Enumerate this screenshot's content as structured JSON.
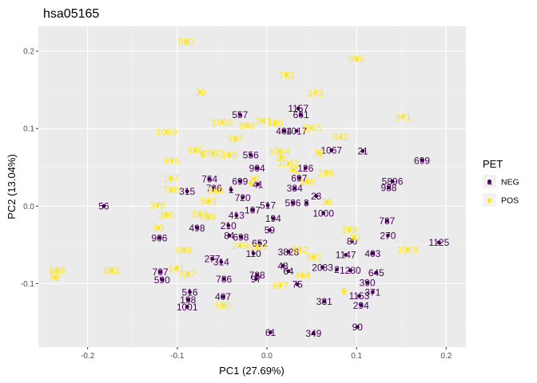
{
  "chart_data": {
    "type": "scatter",
    "title": "hsa05165",
    "xlabel": "PC1 (27.69%)",
    "ylabel": "PC2 (13.04%)",
    "xlim": [
      -0.255,
      0.222
    ],
    "ylim": [
      -0.182,
      0.232
    ],
    "x_ticks": [
      -0.2,
      -0.1,
      0.0,
      0.1,
      0.2
    ],
    "x_tick_labels": [
      "-0.2",
      "-0.1",
      "0.0",
      "0.1",
      "0.2"
    ],
    "y_ticks": [
      -0.1,
      0.0,
      0.1,
      0.2
    ],
    "y_tick_labels": [
      "-0.1",
      "0.0",
      "0.1",
      "0.2"
    ],
    "grid": true,
    "background": "#ebebeb",
    "legend": {
      "title": "PET",
      "position": "right",
      "entries": [
        {
          "label": "NEG",
          "color": "#440154"
        },
        {
          "label": "POS",
          "color": "#fde725"
        }
      ]
    },
    "series": [
      {
        "name": "NEG",
        "color": "#440154",
        "points": [
          {
            "x": -0.182,
            "y": 0.0,
            "label": "56"
          },
          {
            "x": -0.12,
            "y": -0.041,
            "label": "906"
          },
          {
            "x": -0.119,
            "y": -0.085,
            "label": "707"
          },
          {
            "x": -0.117,
            "y": -0.095,
            "label": "590"
          },
          {
            "x": -0.089,
            "y": 0.019,
            "label": "315"
          },
          {
            "x": -0.078,
            "y": -0.028,
            "label": "498"
          },
          {
            "x": -0.086,
            "y": -0.111,
            "label": "516"
          },
          {
            "x": -0.088,
            "y": -0.121,
            "label": "198"
          },
          {
            "x": -0.089,
            "y": -0.13,
            "label": "1001"
          },
          {
            "x": -0.061,
            "y": -0.068,
            "label": "277"
          },
          {
            "x": -0.051,
            "y": -0.072,
            "label": "314"
          },
          {
            "x": -0.048,
            "y": -0.094,
            "label": "786"
          },
          {
            "x": -0.049,
            "y": -0.117,
            "label": "407"
          },
          {
            "x": -0.064,
            "y": 0.035,
            "label": "764"
          },
          {
            "x": -0.059,
            "y": 0.023,
            "label": "796"
          },
          {
            "x": -0.03,
            "y": 0.032,
            "label": "699"
          },
          {
            "x": -0.04,
            "y": 0.021,
            "label": "1"
          },
          {
            "x": -0.027,
            "y": 0.011,
            "label": "720"
          },
          {
            "x": -0.034,
            "y": -0.012,
            "label": "413"
          },
          {
            "x": -0.043,
            "y": -0.025,
            "label": "210"
          },
          {
            "x": -0.042,
            "y": -0.038,
            "label": "84"
          },
          {
            "x": -0.029,
            "y": -0.04,
            "label": "698"
          },
          {
            "x": -0.016,
            "y": -0.005,
            "label": "107"
          },
          {
            "x": -0.008,
            "y": -0.048,
            "label": "652"
          },
          {
            "x": -0.015,
            "y": -0.061,
            "label": "110"
          },
          {
            "x": -0.011,
            "y": -0.089,
            "label": "788"
          },
          {
            "x": -0.012,
            "y": -0.094,
            "label": "97"
          },
          {
            "x": -0.03,
            "y": 0.118,
            "label": "557"
          },
          {
            "x": -0.018,
            "y": 0.066,
            "label": "556"
          },
          {
            "x": -0.011,
            "y": 0.049,
            "label": "904"
          },
          {
            "x": -0.01,
            "y": 0.028,
            "label": "41"
          },
          {
            "x": 0.007,
            "y": -0.016,
            "label": "194"
          },
          {
            "x": 0.003,
            "y": -0.031,
            "label": "59"
          },
          {
            "x": 0.001,
            "y": 0.001,
            "label": "517"
          },
          {
            "x": 0.019,
            "y": 0.097,
            "label": "404"
          },
          {
            "x": 0.033,
            "y": 0.097,
            "label": "1017"
          },
          {
            "x": 0.035,
            "y": 0.126,
            "label": "1157"
          },
          {
            "x": 0.038,
            "y": 0.118,
            "label": "661"
          },
          {
            "x": 0.043,
            "y": 0.049,
            "label": "126"
          },
          {
            "x": 0.036,
            "y": 0.036,
            "label": "697"
          },
          {
            "x": 0.031,
            "y": 0.023,
            "label": "384"
          },
          {
            "x": 0.029,
            "y": 0.004,
            "label": "596"
          },
          {
            "x": 0.055,
            "y": 0.013,
            "label": "23"
          },
          {
            "x": 0.044,
            "y": 0.004,
            "label": "3"
          },
          {
            "x": 0.063,
            "y": -0.009,
            "label": "1000"
          },
          {
            "x": 0.072,
            "y": 0.072,
            "label": "1067"
          },
          {
            "x": 0.107,
            "y": 0.071,
            "label": "21"
          },
          {
            "x": 0.024,
            "y": -0.059,
            "label": "3828"
          },
          {
            "x": 0.018,
            "y": -0.077,
            "label": "48"
          },
          {
            "x": 0.024,
            "y": -0.084,
            "label": "64"
          },
          {
            "x": 0.062,
            "y": -0.079,
            "label": "2083"
          },
          {
            "x": 0.078,
            "y": -0.082,
            "label": "2"
          },
          {
            "x": 0.088,
            "y": -0.063,
            "label": "1147"
          },
          {
            "x": 0.095,
            "y": -0.045,
            "label": "80"
          },
          {
            "x": 0.093,
            "y": -0.083,
            "label": "1280"
          },
          {
            "x": 0.118,
            "y": -0.061,
            "label": "403"
          },
          {
            "x": 0.122,
            "y": -0.086,
            "label": "645"
          },
          {
            "x": 0.112,
            "y": -0.099,
            "label": "390"
          },
          {
            "x": 0.118,
            "y": -0.111,
            "label": "371"
          },
          {
            "x": 0.103,
            "y": -0.116,
            "label": "1153"
          },
          {
            "x": 0.105,
            "y": -0.128,
            "label": "294"
          },
          {
            "x": 0.064,
            "y": -0.123,
            "label": "381"
          },
          {
            "x": 0.034,
            "y": -0.101,
            "label": "75"
          },
          {
            "x": 0.101,
            "y": -0.156,
            "label": "90"
          },
          {
            "x": 0.052,
            "y": -0.164,
            "label": "349"
          },
          {
            "x": 0.004,
            "y": -0.163,
            "label": "61"
          },
          {
            "x": 0.135,
            "y": -0.038,
            "label": "270"
          },
          {
            "x": 0.134,
            "y": -0.019,
            "label": "787"
          },
          {
            "x": 0.136,
            "y": 0.024,
            "label": "988"
          },
          {
            "x": 0.14,
            "y": 0.032,
            "label": "5896"
          },
          {
            "x": 0.173,
            "y": 0.059,
            "label": "699"
          },
          {
            "x": 0.192,
            "y": -0.047,
            "label": "1125"
          }
        ]
      },
      {
        "name": "POS",
        "color": "#fde725",
        "points": [
          {
            "x": -0.234,
            "y": -0.083,
            "label": "888"
          },
          {
            "x": -0.236,
            "y": -0.092,
            "label": "92"
          },
          {
            "x": -0.173,
            "y": -0.083,
            "label": "881"
          },
          {
            "x": -0.121,
            "y": -0.028,
            "label": "90"
          },
          {
            "x": -0.122,
            "y": 0.001,
            "label": "376"
          },
          {
            "x": -0.112,
            "y": -0.011,
            "label": "380"
          },
          {
            "x": -0.107,
            "y": 0.036,
            "label": "167"
          },
          {
            "x": -0.107,
            "y": 0.021,
            "label": "798"
          },
          {
            "x": -0.101,
            "y": -0.08,
            "label": "141"
          },
          {
            "x": -0.093,
            "y": -0.057,
            "label": "989"
          },
          {
            "x": -0.088,
            "y": -0.088,
            "label": "587"
          },
          {
            "x": -0.106,
            "y": 0.059,
            "label": "676"
          },
          {
            "x": -0.112,
            "y": 0.096,
            "label": "1069"
          },
          {
            "x": -0.08,
            "y": 0.072,
            "label": "486"
          },
          {
            "x": -0.072,
            "y": 0.067,
            "label": "2"
          },
          {
            "x": -0.09,
            "y": 0.212,
            "label": "590"
          },
          {
            "x": -0.074,
            "y": 0.147,
            "label": "39"
          },
          {
            "x": -0.05,
            "y": 0.108,
            "label": "1060"
          },
          {
            "x": -0.022,
            "y": 0.104,
            "label": "868"
          },
          {
            "x": -0.035,
            "y": 0.087,
            "label": "597"
          },
          {
            "x": -0.06,
            "y": 0.068,
            "label": "2632"
          },
          {
            "x": -0.042,
            "y": 0.066,
            "label": "100"
          },
          {
            "x": -0.075,
            "y": -0.01,
            "label": "814"
          },
          {
            "x": -0.066,
            "y": -0.014,
            "label": "539"
          },
          {
            "x": -0.065,
            "y": 0.006,
            "label": "503"
          },
          {
            "x": -0.057,
            "y": 0.02,
            "label": "860"
          },
          {
            "x": -0.03,
            "y": -0.051,
            "label": "249"
          },
          {
            "x": -0.011,
            "y": -0.053,
            "label": "1084"
          },
          {
            "x": -0.049,
            "y": -0.128,
            "label": "580"
          },
          {
            "x": -0.018,
            "y": 0.03,
            "label": "5"
          },
          {
            "x": -0.014,
            "y": 0.035,
            "label": "10"
          },
          {
            "x": -0.004,
            "y": 0.11,
            "label": "387"
          },
          {
            "x": 0.009,
            "y": 0.107,
            "label": "480"
          },
          {
            "x": 0.014,
            "y": 0.071,
            "label": "1024"
          },
          {
            "x": 0.016,
            "y": 0.063,
            "label": "35"
          },
          {
            "x": 0.024,
            "y": 0.055,
            "label": "1082"
          },
          {
            "x": 0.03,
            "y": 0.047,
            "label": "41"
          },
          {
            "x": 0.045,
            "y": 0.032,
            "label": "166"
          },
          {
            "x": 0.05,
            "y": 0.101,
            "label": "1165"
          },
          {
            "x": 0.058,
            "y": 0.068,
            "label": "72"
          },
          {
            "x": 0.082,
            "y": 0.089,
            "label": "942"
          },
          {
            "x": 0.066,
            "y": 0.043,
            "label": "296"
          },
          {
            "x": 0.067,
            "y": 0.005,
            "label": "26"
          },
          {
            "x": 0.022,
            "y": 0.169,
            "label": "782"
          },
          {
            "x": 0.054,
            "y": 0.146,
            "label": "373"
          },
          {
            "x": 0.1,
            "y": 0.19,
            "label": "895"
          },
          {
            "x": 0.152,
            "y": 0.115,
            "label": "971"
          },
          {
            "x": 0.092,
            "y": -0.031,
            "label": "378"
          },
          {
            "x": 0.098,
            "y": -0.04,
            "label": "10"
          },
          {
            "x": 0.037,
            "y": -0.056,
            "label": "582"
          },
          {
            "x": 0.052,
            "y": -0.066,
            "label": "602"
          },
          {
            "x": 0.04,
            "y": -0.089,
            "label": "454"
          },
          {
            "x": 0.015,
            "y": -0.103,
            "label": "877"
          },
          {
            "x": 0.086,
            "y": -0.11,
            "label": "9"
          },
          {
            "x": 0.157,
            "y": -0.056,
            "label": "1078"
          }
        ]
      }
    ]
  }
}
